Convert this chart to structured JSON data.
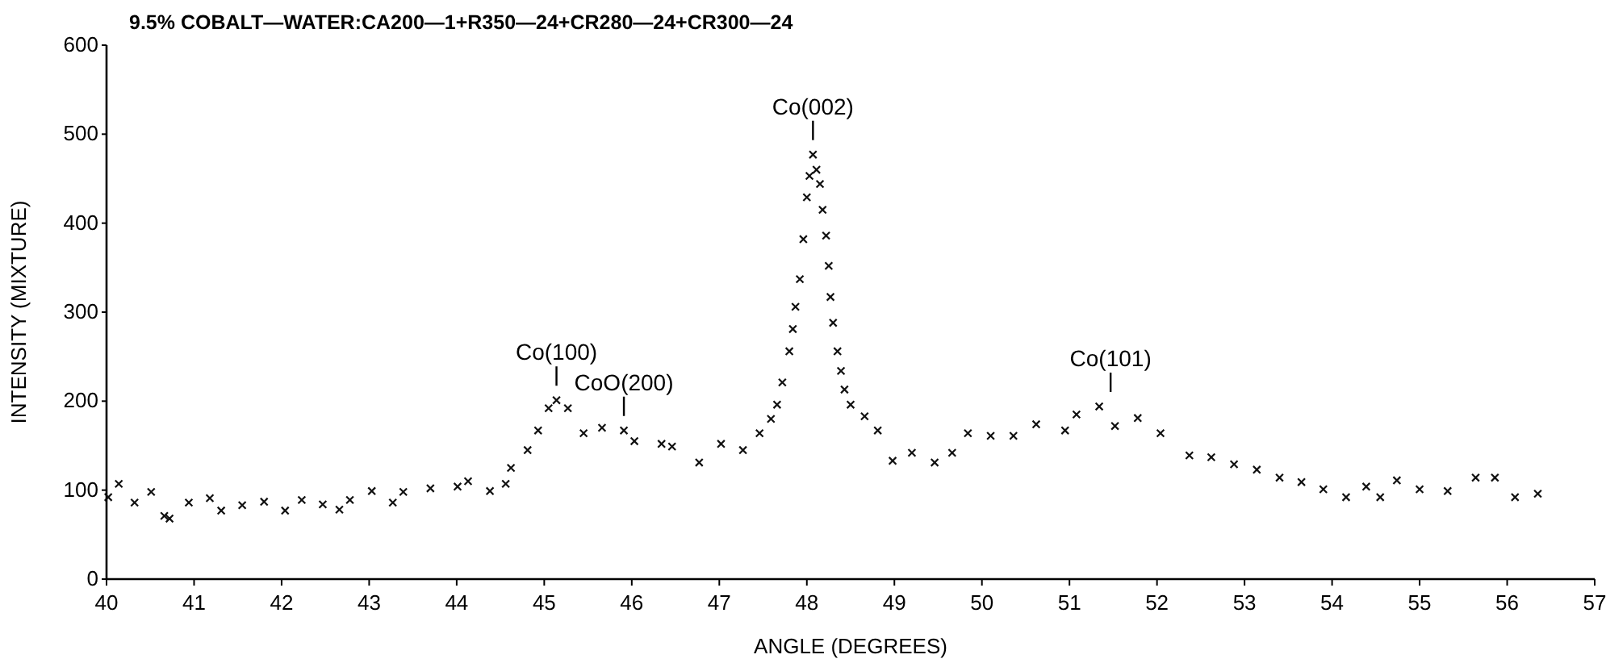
{
  "chart_data": {
    "type": "scatter",
    "title": "9.5% COBALT—WATER:CA200—1+R350—24+CR280—24+CR300—24",
    "xlabel": "ANGLE (DEGREES)",
    "ylabel": "INTENSITY (MIXTURE)",
    "x": [
      40.02,
      40.14,
      40.32,
      40.51,
      40.66,
      40.72,
      40.94,
      41.18,
      41.31,
      41.55,
      41.8,
      42.04,
      42.23,
      42.47,
      42.66,
      42.78,
      43.03,
      43.27,
      43.39,
      43.7,
      44.01,
      44.13,
      44.38,
      44.56,
      44.62,
      44.81,
      44.93,
      45.05,
      45.14,
      45.27,
      45.45,
      45.66,
      45.91,
      46.03,
      46.34,
      46.46,
      46.77,
      47.02,
      47.27,
      47.46,
      47.59,
      47.66,
      47.72,
      47.8,
      47.84,
      47.87,
      47.92,
      47.96,
      48.0,
      48.03,
      48.07,
      48.11,
      48.15,
      48.18,
      48.22,
      48.25,
      48.27,
      48.3,
      48.35,
      48.39,
      48.43,
      48.5,
      48.66,
      48.81,
      48.98,
      49.2,
      49.46,
      49.66,
      49.84,
      50.1,
      50.36,
      50.62,
      50.95,
      51.08,
      51.34,
      51.52,
      51.78,
      52.04,
      52.37,
      52.62,
      52.88,
      53.14,
      53.4,
      53.65,
      53.9,
      54.16,
      54.39,
      54.55,
      54.74,
      55.0,
      55.32,
      55.64,
      55.86,
      56.09,
      56.35
    ],
    "series": [
      {
        "color": "#111111",
        "values": [
          92,
          107,
          86,
          98,
          71,
          68,
          86,
          91,
          77,
          83,
          87,
          77,
          89,
          84,
          78,
          89,
          99,
          86,
          98,
          102,
          104,
          110,
          99,
          107,
          125,
          145,
          167,
          192,
          201,
          192,
          164,
          170,
          167,
          155,
          152,
          149,
          131,
          152,
          145,
          164,
          180,
          196,
          221,
          256,
          281,
          306,
          337,
          382,
          429,
          453,
          477,
          460,
          444,
          415,
          386,
          352,
          317,
          288,
          256,
          234,
          213,
          196,
          183,
          167,
          133,
          142,
          131,
          142,
          164,
          161,
          161,
          174,
          167,
          185,
          194,
          172,
          181,
          164,
          139,
          137,
          129,
          123,
          114,
          109,
          101,
          92,
          104,
          92,
          111,
          101,
          99,
          114,
          114,
          92,
          96
        ]
      }
    ],
    "marker": "cross",
    "xlim": [
      40,
      57
    ],
    "ylim": [
      0,
      600
    ],
    "xticks": [
      40,
      41,
      42,
      43,
      44,
      45,
      46,
      47,
      48,
      49,
      50,
      51,
      52,
      53,
      54,
      55,
      56,
      57
    ],
    "yticks": [
      0,
      100,
      200,
      300,
      400,
      500,
      600
    ],
    "annotations": [
      {
        "text": "Co(100)",
        "x": 45.14,
        "y": 201
      },
      {
        "text": "CoO(200)",
        "x": 45.91,
        "y": 167
      },
      {
        "text": "Co(002)",
        "x": 48.07,
        "y": 477
      },
      {
        "text": "Co(101)",
        "x": 51.47,
        "y": 194
      }
    ]
  }
}
